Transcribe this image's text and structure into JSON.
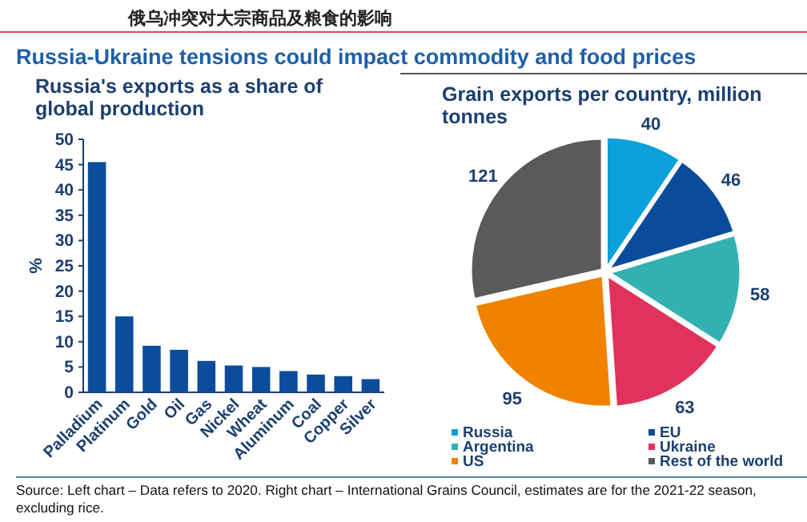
{
  "chart_data": [
    {
      "type": "bar",
      "title": "Russia's exports as a share of global production",
      "ylabel": "%",
      "categories": [
        "Palladium",
        "Platinum",
        "Gold",
        "Oil",
        "Gas",
        "Nickel",
        "Wheat",
        "Aluminum",
        "Coal",
        "Copper",
        "Silver"
      ],
      "values": [
        45.5,
        15,
        9.2,
        8.4,
        6.2,
        5.3,
        5,
        4.2,
        3.5,
        3.2,
        2.6
      ],
      "color": "#0b4c9c",
      "ylim": [
        0,
        50
      ],
      "yticks": [
        0,
        5,
        10,
        15,
        20,
        25,
        30,
        35,
        40,
        45,
        50
      ],
      "grid": false,
      "annotations": [
        "俄乌冲突对大宗商品及粮食的影响",
        "Russia-Ukraine tensions could impact commodity and food prices",
        "Source: Left chart – Data refers to 2020. Right chart – International Grains Council, estimates are for the 2021-22 season, excluding rice."
      ]
    },
    {
      "type": "pie",
      "title": "Grain exports per country, million tonnes",
      "categories": [
        "Russia",
        "EU",
        "Argentina",
        "Ukraine",
        "US",
        "Rest of the world"
      ],
      "values": [
        40,
        46,
        58,
        63,
        95,
        121
      ],
      "colors": [
        "#0aa0dc",
        "#0a4c9c",
        "#33b0b2",
        "#e0325c",
        "#f08200",
        "#5a5a5a"
      ],
      "data_labels": true,
      "legend": "bottom"
    }
  ]
}
